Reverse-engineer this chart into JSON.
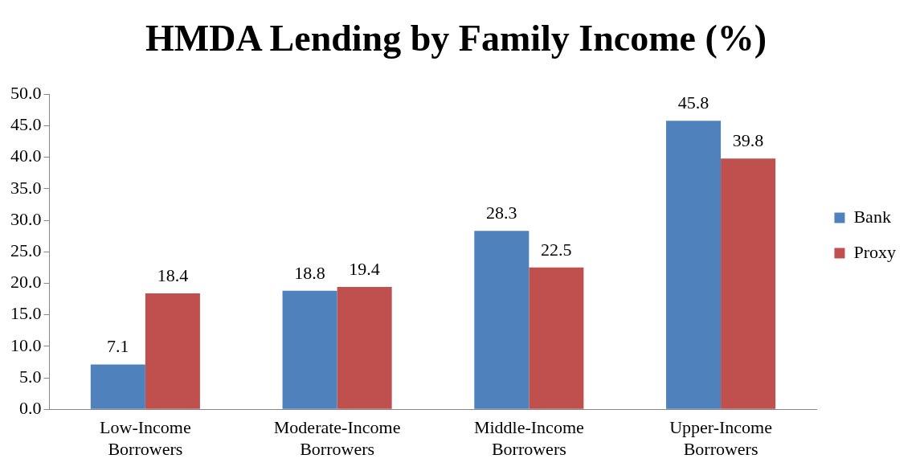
{
  "chart_data": {
    "type": "bar",
    "title": "HMDA Lending by Family Income (%)",
    "categories": [
      "Low-Income Borrowers",
      "Moderate-Income Borrowers",
      "Middle-Income Borrowers",
      "Upper-Income Borrowers"
    ],
    "series": [
      {
        "name": "Bank",
        "color": "#4f81bd",
        "values": [
          7.1,
          18.8,
          28.3,
          45.8
        ]
      },
      {
        "name": "Proxy",
        "color": "#c0504d",
        "values": [
          18.4,
          19.4,
          22.5,
          39.8
        ]
      }
    ],
    "ylim": [
      0,
      50
    ],
    "yticks": [
      {
        "value": 0,
        "label": "0.0"
      },
      {
        "value": 5,
        "label": "5.0"
      },
      {
        "value": 10,
        "label": "10.0"
      },
      {
        "value": 15,
        "label": "15.0"
      },
      {
        "value": 20,
        "label": "20.0"
      },
      {
        "value": 25,
        "label": "25.0"
      },
      {
        "value": 30,
        "label": "30.0"
      },
      {
        "value": 35,
        "label": "35.0"
      },
      {
        "value": 40,
        "label": "40.0"
      },
      {
        "value": 45,
        "label": "45.0"
      },
      {
        "value": 50,
        "label": "50.0"
      }
    ],
    "grid": false,
    "legend": "right",
    "data_labels": true
  }
}
